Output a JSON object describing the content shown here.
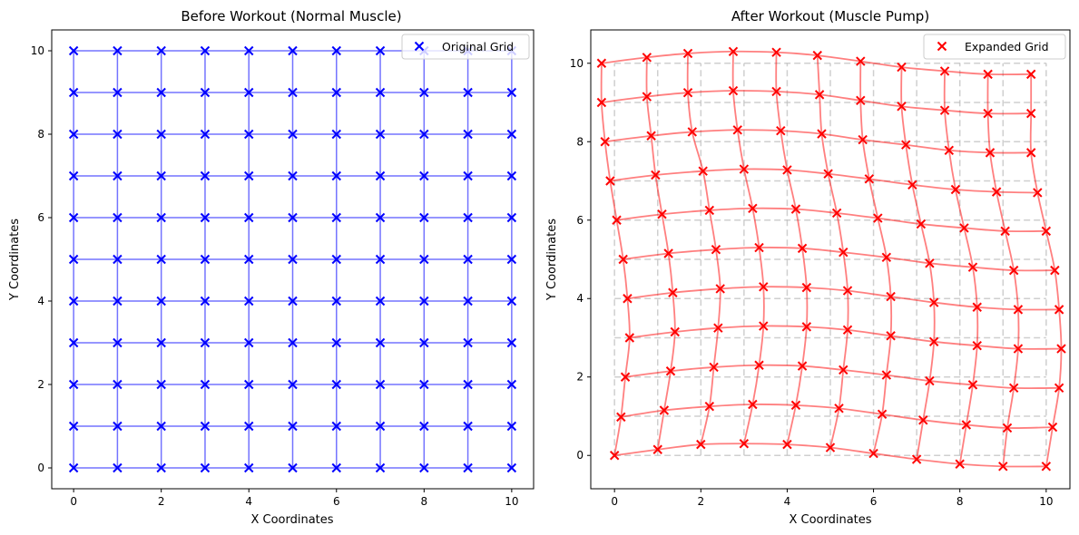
{
  "chart_data": [
    {
      "type": "scatter",
      "title": "Before Workout (Normal Muscle)",
      "xlabel": "X Coordinates",
      "ylabel": "Y Coordinates",
      "xlim": [
        -0.5,
        10.5
      ],
      "ylim": [
        -0.5,
        10.5
      ],
      "xticks": [
        0,
        2,
        4,
        6,
        8,
        10
      ],
      "yticks": [
        0,
        2,
        4,
        6,
        8,
        10
      ],
      "grid_lines": true,
      "legend_position": "top-right",
      "series": [
        {
          "name": "Original Grid",
          "color": "#0000ff",
          "marker": "x",
          "grid_size": 11,
          "x_values": [
            0,
            1,
            2,
            3,
            4,
            5,
            6,
            7,
            8,
            9,
            10
          ],
          "y_values": [
            0,
            1,
            2,
            3,
            4,
            5,
            6,
            7,
            8,
            9,
            10
          ]
        }
      ]
    },
    {
      "type": "scatter",
      "title": "After Workout (Muscle Pump)",
      "xlabel": "X Coordinates",
      "ylabel": "Y Coordinates",
      "xlim": [
        -0.55,
        10.55
      ],
      "ylim": [
        -0.85,
        10.85
      ],
      "xticks": [
        0,
        2,
        4,
        6,
        8,
        10
      ],
      "yticks": [
        0,
        2,
        4,
        6,
        8,
        10
      ],
      "legend_position": "top-right",
      "background_grid": {
        "color": "#bbbbbb",
        "style": "dashed",
        "x_values": [
          0,
          1,
          2,
          3,
          4,
          5,
          6,
          7,
          8,
          9,
          10
        ],
        "y_values": [
          0,
          1,
          2,
          3,
          4,
          5,
          6,
          7,
          8,
          9,
          10
        ]
      },
      "series": [
        {
          "name": "Expanded Grid",
          "color": "#ff0000",
          "marker": "x",
          "rows": [
            [
              [
                0.0,
                0.0
              ],
              [
                1.0,
                0.15
              ],
              [
                2.0,
                0.28
              ],
              [
                3.0,
                0.3
              ],
              [
                4.0,
                0.28
              ],
              [
                5.0,
                0.2
              ],
              [
                6.0,
                0.05
              ],
              [
                7.0,
                -0.1
              ],
              [
                8.0,
                -0.22
              ],
              [
                9.0,
                -0.28
              ],
              [
                10.0,
                -0.28
              ]
            ],
            [
              [
                0.15,
                0.98
              ],
              [
                1.15,
                1.15
              ],
              [
                2.2,
                1.25
              ],
              [
                3.2,
                1.3
              ],
              [
                4.2,
                1.28
              ],
              [
                5.2,
                1.2
              ],
              [
                6.2,
                1.05
              ],
              [
                7.15,
                0.9
              ],
              [
                8.15,
                0.78
              ],
              [
                9.1,
                0.7
              ],
              [
                10.15,
                0.72
              ]
            ],
            [
              [
                0.25,
                2.0
              ],
              [
                1.3,
                2.15
              ],
              [
                2.3,
                2.25
              ],
              [
                3.35,
                2.3
              ],
              [
                4.35,
                2.28
              ],
              [
                5.3,
                2.18
              ],
              [
                6.3,
                2.05
              ],
              [
                7.3,
                1.9
              ],
              [
                8.3,
                1.8
              ],
              [
                9.25,
                1.72
              ],
              [
                10.3,
                1.72
              ]
            ],
            [
              [
                0.35,
                3.0
              ],
              [
                1.4,
                3.15
              ],
              [
                2.4,
                3.25
              ],
              [
                3.45,
                3.3
              ],
              [
                4.45,
                3.28
              ],
              [
                5.4,
                3.2
              ],
              [
                6.4,
                3.05
              ],
              [
                7.4,
                2.9
              ],
              [
                8.4,
                2.8
              ],
              [
                9.35,
                2.72
              ],
              [
                10.35,
                2.72
              ]
            ],
            [
              [
                0.3,
                4.0
              ],
              [
                1.35,
                4.15
              ],
              [
                2.45,
                4.25
              ],
              [
                3.45,
                4.3
              ],
              [
                4.45,
                4.28
              ],
              [
                5.4,
                4.2
              ],
              [
                6.4,
                4.05
              ],
              [
                7.4,
                3.9
              ],
              [
                8.4,
                3.78
              ],
              [
                9.35,
                3.72
              ],
              [
                10.3,
                3.72
              ]
            ],
            [
              [
                0.2,
                5.0
              ],
              [
                1.25,
                5.15
              ],
              [
                2.35,
                5.25
              ],
              [
                3.35,
                5.3
              ],
              [
                4.35,
                5.28
              ],
              [
                5.3,
                5.18
              ],
              [
                6.3,
                5.05
              ],
              [
                7.3,
                4.9
              ],
              [
                8.3,
                4.8
              ],
              [
                9.25,
                4.72
              ],
              [
                10.2,
                4.72
              ]
            ],
            [
              [
                0.05,
                6.0
              ],
              [
                1.1,
                6.15
              ],
              [
                2.2,
                6.25
              ],
              [
                3.2,
                6.3
              ],
              [
                4.2,
                6.28
              ],
              [
                5.15,
                6.18
              ],
              [
                6.1,
                6.05
              ],
              [
                7.1,
                5.9
              ],
              [
                8.1,
                5.8
              ],
              [
                9.05,
                5.72
              ],
              [
                10.0,
                5.72
              ]
            ],
            [
              [
                -0.1,
                7.0
              ],
              [
                0.95,
                7.15
              ],
              [
                2.05,
                7.25
              ],
              [
                3.0,
                7.3
              ],
              [
                4.0,
                7.28
              ],
              [
                4.95,
                7.18
              ],
              [
                5.9,
                7.05
              ],
              [
                6.9,
                6.9
              ],
              [
                7.9,
                6.78
              ],
              [
                8.85,
                6.72
              ],
              [
                9.8,
                6.7
              ]
            ],
            [
              [
                -0.22,
                8.0
              ],
              [
                0.85,
                8.15
              ],
              [
                1.8,
                8.25
              ],
              [
                2.85,
                8.3
              ],
              [
                3.85,
                8.28
              ],
              [
                4.8,
                8.2
              ],
              [
                5.75,
                8.05
              ],
              [
                6.75,
                7.92
              ],
              [
                7.75,
                7.78
              ],
              [
                8.7,
                7.72
              ],
              [
                9.65,
                7.72
              ]
            ],
            [
              [
                -0.3,
                9.0
              ],
              [
                0.75,
                9.15
              ],
              [
                1.7,
                9.25
              ],
              [
                2.75,
                9.3
              ],
              [
                3.75,
                9.28
              ],
              [
                4.75,
                9.2
              ],
              [
                5.7,
                9.05
              ],
              [
                6.65,
                8.9
              ],
              [
                7.65,
                8.8
              ],
              [
                8.65,
                8.72
              ],
              [
                9.65,
                8.72
              ]
            ],
            [
              [
                -0.3,
                10.0
              ],
              [
                0.75,
                10.15
              ],
              [
                1.7,
                10.25
              ],
              [
                2.75,
                10.3
              ],
              [
                3.75,
                10.28
              ],
              [
                4.7,
                10.2
              ],
              [
                5.7,
                10.05
              ],
              [
                6.65,
                9.9
              ],
              [
                7.65,
                9.8
              ],
              [
                8.65,
                9.72
              ],
              [
                9.65,
                9.72
              ]
            ]
          ]
        }
      ]
    }
  ]
}
